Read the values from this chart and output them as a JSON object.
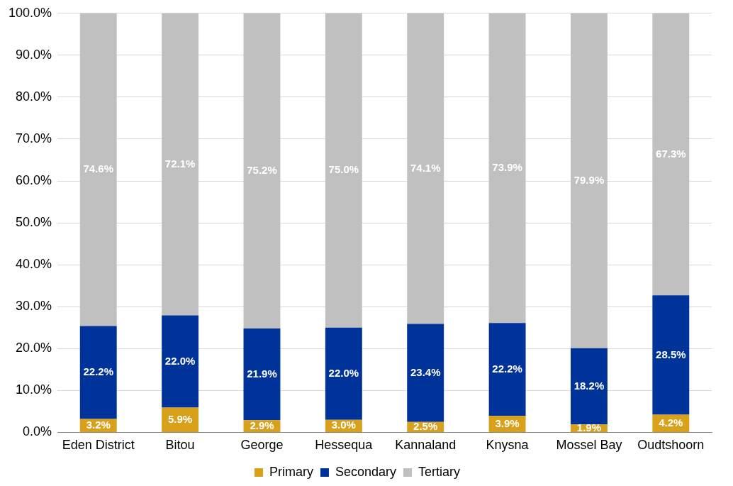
{
  "chart_data": {
    "type": "bar",
    "stacked": true,
    "categories": [
      "Eden District",
      "Bitou",
      "George",
      "Hessequa",
      "Kannaland",
      "Knysna",
      "Mossel Bay",
      "Oudtshoorn"
    ],
    "series": [
      {
        "name": "Primary",
        "color": "#d9a01a",
        "values": [
          3.2,
          5.9,
          2.9,
          3.0,
          2.5,
          3.9,
          1.9,
          4.2
        ],
        "value_labels": [
          "3.2%",
          "5.9%",
          "2.9%",
          "3.0%",
          "2.5%",
          "3.9%",
          "1.9%",
          "4.2%"
        ]
      },
      {
        "name": "Secondary",
        "color": "#003399",
        "values": [
          22.2,
          22.0,
          21.9,
          22.0,
          23.4,
          22.2,
          18.2,
          28.5
        ],
        "value_labels": [
          "22.2%",
          "22.0%",
          "21.9%",
          "22.0%",
          "23.4%",
          "22.2%",
          "18.2%",
          "28.5%"
        ]
      },
      {
        "name": "Tertiary",
        "color": "#c0c0c0",
        "values": [
          74.6,
          72.1,
          75.2,
          75.0,
          74.1,
          73.9,
          79.9,
          67.3
        ],
        "value_labels": [
          "74.6%",
          "72.1%",
          "75.2%",
          "75.0%",
          "74.1%",
          "73.9%",
          "79.9%",
          "67.3%"
        ]
      }
    ],
    "ylim": [
      0,
      100
    ],
    "yticks": [
      {
        "value": 0,
        "label": "0.0%"
      },
      {
        "value": 10,
        "label": "10.0%"
      },
      {
        "value": 20,
        "label": "20.0%"
      },
      {
        "value": 30,
        "label": "30.0%"
      },
      {
        "value": 40,
        "label": "40.0%"
      },
      {
        "value": 50,
        "label": "50.0%"
      },
      {
        "value": 60,
        "label": "60.0%"
      },
      {
        "value": 70,
        "label": "70.0%"
      },
      {
        "value": 80,
        "label": "80.0%"
      },
      {
        "value": 90,
        "label": "90.0%"
      },
      {
        "value": 100,
        "label": "100.0%"
      }
    ],
    "grid": "y",
    "legend": "bottom"
  }
}
